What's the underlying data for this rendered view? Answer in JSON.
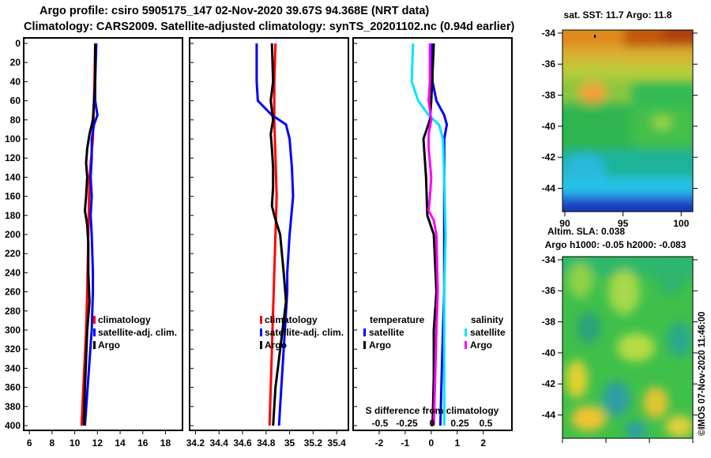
{
  "title_line1": "Argo profile: csiro 5905175_147 02-Nov-2020 39.67S 94.368E (NRT data)",
  "title_line2": "Climatology: CARS2009. Satellite-adjusted climatology: synTS_20201102.nc (0.94d earlier)",
  "sst_map_title": "sat. SST: 11.7 Argo: 11.8",
  "sla_map_title": "Altim. SLA: 0.038",
  "sla_map_subtitle": "Argo h1000: -0.05 h2000: -0.083",
  "credit": "©IMOS 07-Nov-2020 11:46:00",
  "colors": {
    "climatology": "#ff0000",
    "satellite": "#0000ff",
    "argo": "#000000",
    "sat_salinity": "#00e5ff",
    "argo_salinity": "#ff00ff"
  },
  "chart_data": [
    {
      "name": "temperature-profile",
      "type": "line",
      "ylabel": "depth",
      "ylim": [
        400,
        0
      ],
      "xlim": [
        5.5,
        19.5
      ],
      "yticks": [
        "0",
        "20",
        "40",
        "60",
        "80",
        "100",
        "120",
        "140",
        "160",
        "180",
        "200",
        "220",
        "240",
        "260",
        "280",
        "300",
        "320",
        "340",
        "360",
        "380",
        "400"
      ],
      "xticks": [
        "6",
        "8",
        "10",
        "12",
        "14",
        "16",
        "18"
      ],
      "legend": [
        "climatology",
        "satellite-adj. clim.",
        "Argo"
      ],
      "series": [
        {
          "name": "climatology",
          "depth": [
            0,
            60,
            100,
            140,
            200,
            260,
            300,
            350,
            400
          ],
          "values": [
            11.8,
            11.7,
            11.6,
            11.3,
            11.2,
            11.1,
            11.0,
            10.8,
            10.6
          ]
        },
        {
          "name": "satellite-adj. clim.",
          "depth": [
            0,
            40,
            60,
            75,
            85,
            100,
            120,
            140,
            160,
            180,
            200,
            240,
            260,
            300,
            350,
            400
          ],
          "values": [
            11.9,
            11.8,
            11.8,
            12.0,
            11.7,
            11.5,
            11.5,
            11.4,
            11.5,
            11.4,
            11.5,
            11.6,
            11.6,
            11.5,
            11.2,
            10.9
          ]
        },
        {
          "name": "Argo",
          "depth": [
            0,
            40,
            60,
            80,
            95,
            110,
            125,
            140,
            160,
            175,
            190,
            210,
            240,
            270,
            300,
            330,
            360,
            400
          ],
          "values": [
            11.8,
            11.8,
            11.7,
            11.6,
            11.3,
            11.1,
            11.0,
            11.1,
            11.0,
            10.9,
            11.1,
            11.2,
            11.2,
            11.3,
            11.1,
            11.0,
            10.9,
            10.8
          ]
        }
      ]
    },
    {
      "name": "salinity-profile",
      "type": "line",
      "ylim": [
        400,
        0
      ],
      "xlim": [
        34.15,
        35.5
      ],
      "xticks": [
        "34.2",
        "34.4",
        "34.6",
        "34.8",
        "35",
        "35.2",
        "35.4"
      ],
      "legend": [
        "climatology",
        "satellite-adj. clim.",
        "Argo"
      ],
      "series": [
        {
          "name": "climatology",
          "depth": [
            0,
            40,
            80,
            120,
            160,
            200,
            240,
            280,
            320,
            360,
            400
          ],
          "values": [
            34.88,
            34.87,
            34.87,
            34.88,
            34.89,
            34.88,
            34.87,
            34.86,
            34.85,
            34.84,
            34.83
          ]
        },
        {
          "name": "satellite-adj. clim.",
          "depth": [
            0,
            40,
            60,
            75,
            85,
            100,
            130,
            160,
            200,
            240,
            260,
            300,
            340,
            380,
            400
          ],
          "values": [
            34.72,
            34.72,
            34.73,
            34.85,
            34.97,
            35.0,
            35.02,
            35.03,
            35.0,
            34.98,
            34.98,
            34.96,
            34.94,
            34.92,
            34.91
          ]
        },
        {
          "name": "Argo",
          "depth": [
            0,
            40,
            60,
            80,
            95,
            110,
            130,
            150,
            170,
            180,
            200,
            240,
            270,
            300,
            330,
            360,
            400
          ],
          "values": [
            34.85,
            34.86,
            34.84,
            34.86,
            34.84,
            34.85,
            34.86,
            34.86,
            34.85,
            34.87,
            34.92,
            34.95,
            34.97,
            34.94,
            34.91,
            34.88,
            34.86
          ]
        }
      ]
    },
    {
      "name": "difference-profile",
      "type": "line",
      "title": "S difference from climatology",
      "ylim": [
        400,
        0
      ],
      "xlim": [
        -3.0,
        3.1
      ],
      "xticks": [
        "-2",
        "-1",
        "0",
        "1",
        "2"
      ],
      "secondary_xticks": [
        "-0.5",
        "-0.25",
        "0",
        "0.25",
        "0.5"
      ],
      "legend_left_title": "temperature",
      "legend_right_title": "salinity",
      "legend_left": [
        "satellite",
        "Argo"
      ],
      "legend_right": [
        "satellite",
        "Argo"
      ],
      "series": [
        {
          "name": "temperature satellite",
          "depth": [
            0,
            40,
            60,
            75,
            85,
            100,
            140,
            200,
            260,
            300,
            350,
            400
          ],
          "values": [
            0.0,
            0.05,
            0.2,
            0.5,
            0.6,
            0.5,
            0.5,
            0.5,
            0.5,
            0.45,
            0.4,
            0.35
          ]
        },
        {
          "name": "temperature Argo",
          "depth": [
            0,
            30,
            60,
            80,
            100,
            140,
            180,
            200,
            260,
            300,
            350,
            400
          ],
          "values": [
            0.1,
            0.05,
            0.0,
            -0.05,
            -0.3,
            -0.2,
            -0.15,
            0.1,
            0.2,
            0.1,
            0.1,
            0.05
          ]
        },
        {
          "name": "salinity satellite",
          "depth": [
            0,
            40,
            60,
            75,
            85,
            100,
            140,
            200,
            260,
            300,
            350,
            400
          ],
          "values": [
            -0.7,
            -0.75,
            -0.5,
            -0.1,
            0.3,
            0.45,
            0.5,
            0.55,
            0.5,
            0.5,
            0.5,
            0.5
          ]
        },
        {
          "name": "salinity Argo",
          "depth": [
            0,
            40,
            60,
            80,
            95,
            110,
            140,
            160,
            175,
            185,
            200,
            260,
            300,
            350,
            400
          ],
          "values": [
            -0.05,
            -0.05,
            -0.1,
            0.0,
            -0.1,
            -0.1,
            0.0,
            -0.05,
            -0.1,
            0.1,
            0.2,
            0.25,
            0.2,
            0.15,
            0.1
          ]
        }
      ]
    },
    {
      "name": "sst-map",
      "type": "heatmap",
      "yticks": [
        "-34",
        "-36",
        "-38",
        "-40",
        "-42",
        "-44"
      ],
      "xticks": [
        "90",
        "95",
        "100"
      ],
      "ylim": [
        -45.5,
        -33.8
      ],
      "xlim": [
        89.8,
        101.0
      ]
    },
    {
      "name": "sla-map",
      "type": "heatmap",
      "yticks": [
        "-34",
        "-36",
        "-38",
        "-40",
        "-42",
        "-44"
      ],
      "ylim": [
        -45.5,
        -33.8
      ]
    }
  ]
}
